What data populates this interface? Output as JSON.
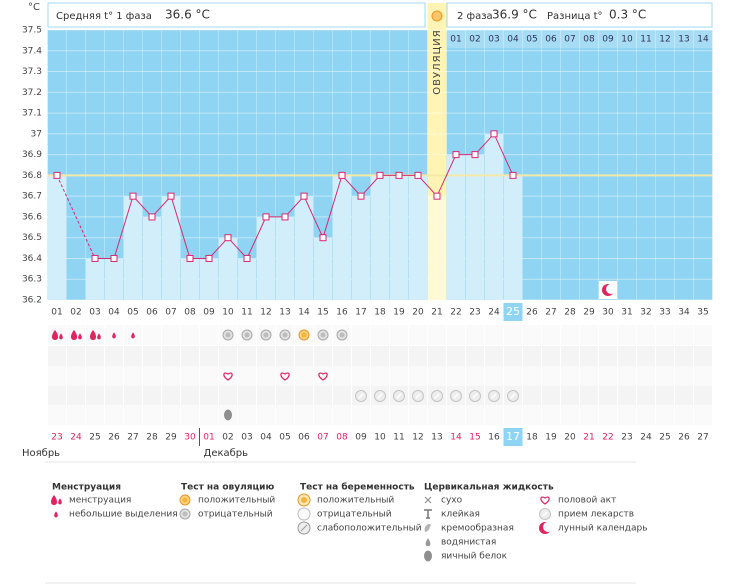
{
  "chart_data": {
    "type": "line",
    "y_unit": "°C",
    "summary": {
      "phase1_label": "Средняя t° 1 фаза",
      "phase1_value": "36.6 °C",
      "phase2_label": "2 фаза",
      "phase2_value": "36.9 °C",
      "diff_label": "Разница t°",
      "diff_value": "0.3 °C"
    },
    "categories": [
      "01",
      "02",
      "03",
      "04",
      "05",
      "06",
      "07",
      "08",
      "09",
      "10",
      "11",
      "12",
      "13",
      "14",
      "15",
      "16",
      "17",
      "18",
      "19",
      "20",
      "21",
      "22",
      "23",
      "24",
      "25",
      "26",
      "27",
      "28",
      "29",
      "30",
      "31",
      "32",
      "33",
      "34",
      "35"
    ],
    "values": [
      36.8,
      null,
      36.4,
      36.4,
      36.7,
      36.6,
      36.7,
      36.4,
      36.4,
      36.5,
      36.4,
      36.6,
      36.6,
      36.7,
      36.5,
      36.8,
      36.7,
      36.8,
      36.8,
      36.8,
      36.7,
      36.9,
      36.9,
      37.0,
      36.8,
      null,
      null,
      null,
      null,
      null,
      null,
      null,
      null,
      null,
      null
    ],
    "ylim": [
      36.2,
      37.5
    ],
    "yticks": [
      36.2,
      36.3,
      36.4,
      36.5,
      36.6,
      36.7,
      36.8,
      36.9,
      37,
      37.1,
      37.2,
      37.3,
      37.4,
      37.5
    ],
    "grid": true,
    "bg_color": "#8fd4f2",
    "bar_color": "#d3eefb",
    "line_color": "#d8286f",
    "coverline": 36.8,
    "coverline_color": "#f4e9a6",
    "ovulation_day": 21,
    "ovulation_label": "ОВУЛЯЦИЯ",
    "phase2_days": [
      "01",
      "02",
      "03",
      "04",
      "05",
      "06",
      "07",
      "08",
      "09",
      "10",
      "11",
      "12",
      "13",
      "14"
    ],
    "today_day": 25,
    "moon_days": [
      30
    ],
    "dates": [
      "23",
      "24",
      "25",
      "26",
      "27",
      "28",
      "29",
      "30",
      "01",
      "02",
      "03",
      "04",
      "05",
      "06",
      "07",
      "08",
      "09",
      "10",
      "11",
      "12",
      "13",
      "14",
      "15",
      "16",
      "17",
      "18",
      "19",
      "20",
      "21",
      "22",
      "23",
      "24",
      "25",
      "26",
      "27"
    ],
    "date_red": [
      true,
      true,
      false,
      false,
      false,
      false,
      false,
      true,
      true,
      false,
      false,
      false,
      false,
      false,
      true,
      true,
      false,
      false,
      false,
      false,
      false,
      true,
      true,
      false,
      false,
      false,
      false,
      false,
      true,
      true,
      false,
      false,
      false,
      false,
      false
    ],
    "months": [
      {
        "label": "Ноябрь",
        "start_day": 1
      },
      {
        "label": "Декабрь",
        "start_day": 9
      }
    ],
    "symbol_rows": [
      [
        {
          "day": 1,
          "icon": "period"
        },
        {
          "day": 2,
          "icon": "period"
        },
        {
          "day": 3,
          "icon": "period"
        },
        {
          "day": 4,
          "icon": "spotting"
        },
        {
          "day": 5,
          "icon": "spotting"
        },
        {
          "day": 10,
          "icon": "ovu_neg"
        },
        {
          "day": 11,
          "icon": "ovu_neg"
        },
        {
          "day": 12,
          "icon": "ovu_neg"
        },
        {
          "day": 13,
          "icon": "ovu_neg"
        },
        {
          "day": 14,
          "icon": "ovu_pos"
        },
        {
          "day": 15,
          "icon": "ovu_neg"
        },
        {
          "day": 16,
          "icon": "ovu_neg"
        }
      ],
      [],
      [
        {
          "day": 10,
          "icon": "sex"
        },
        {
          "day": 13,
          "icon": "sex"
        },
        {
          "day": 15,
          "icon": "sex"
        }
      ],
      [
        {
          "day": 17,
          "icon": "meds"
        },
        {
          "day": 18,
          "icon": "meds"
        },
        {
          "day": 19,
          "icon": "meds"
        },
        {
          "day": 20,
          "icon": "meds"
        },
        {
          "day": 21,
          "icon": "meds"
        },
        {
          "day": 22,
          "icon": "meds"
        },
        {
          "day": 23,
          "icon": "meds"
        },
        {
          "day": 24,
          "icon": "meds"
        },
        {
          "day": 25,
          "icon": "meds"
        }
      ],
      [
        {
          "day": 10,
          "icon": "eggwhite"
        }
      ]
    ],
    "legend": [
      {
        "title": "Менструация",
        "items": [
          {
            "icon": "period",
            "label": "менструация"
          },
          {
            "icon": "spotting",
            "label": "небольшие выделения"
          }
        ]
      },
      {
        "title": "Тест на овуляцию",
        "items": [
          {
            "icon": "ovu_pos",
            "label": "положительный"
          },
          {
            "icon": "ovu_neg",
            "label": "отрицательный"
          }
        ]
      },
      {
        "title": "Тест на беременность",
        "items": [
          {
            "icon": "preg_pos",
            "label": "положительный"
          },
          {
            "icon": "preg_neg",
            "label": "отрицательный"
          },
          {
            "icon": "preg_weak",
            "label": "слабоположительный"
          }
        ]
      },
      {
        "title": "Цервикальная жидкость",
        "items": [
          {
            "icon": "dry",
            "label": "сухо"
          },
          {
            "icon": "sticky",
            "label": "клейкая"
          },
          {
            "icon": "creamy",
            "label": "кремообразная"
          },
          {
            "icon": "watery",
            "label": "водянистая"
          },
          {
            "icon": "eggwhite",
            "label": "яичный белок"
          }
        ]
      },
      {
        "items": [
          {
            "icon": "sex",
            "label": "половой акт"
          },
          {
            "icon": "meds",
            "label": "прием лекарств"
          },
          {
            "icon": "moon",
            "label": "лунный календарь"
          }
        ]
      }
    ]
  }
}
